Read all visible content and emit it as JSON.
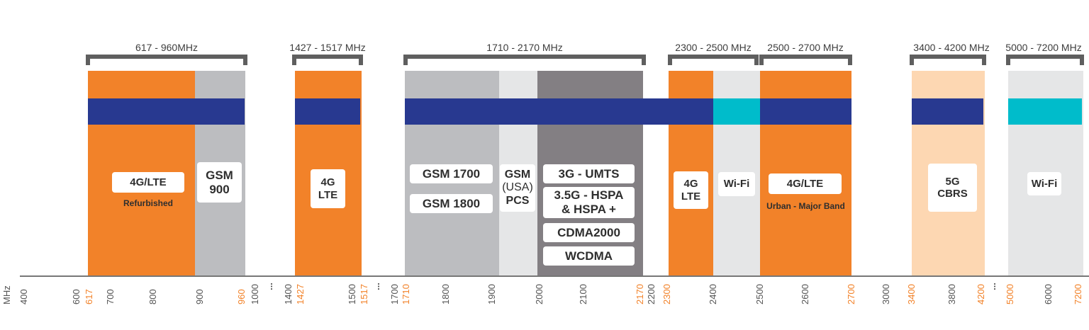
{
  "colors": {
    "orange": "#f28229",
    "light_orange": "#fdd7b2",
    "gray": "#bcbdc0",
    "light_gray": "#e5e6e7",
    "dark_gray": "#837f83",
    "navy": "#283990",
    "cyan": "#00bccb",
    "bracket": "#5f5f5f"
  },
  "axis": {
    "unit": "MHz",
    "ticks": [
      {
        "label": "400",
        "color": "gray"
      },
      {
        "label": "600",
        "color": "gray"
      },
      {
        "label": "617",
        "color": "orange"
      },
      {
        "label": "700",
        "color": "gray"
      },
      {
        "label": "800",
        "color": "gray"
      },
      {
        "label": "900",
        "color": "gray"
      },
      {
        "label": "960",
        "color": "orange"
      },
      {
        "label": "1000",
        "color": "gray"
      },
      {
        "label": "1400",
        "color": "gray"
      },
      {
        "label": "1427",
        "color": "orange"
      },
      {
        "label": "1500",
        "color": "gray"
      },
      {
        "label": "1517",
        "color": "orange"
      },
      {
        "label": "1700",
        "color": "gray"
      },
      {
        "label": "1710",
        "color": "orange"
      },
      {
        "label": "1800",
        "color": "gray"
      },
      {
        "label": "1900",
        "color": "gray"
      },
      {
        "label": "2000",
        "color": "gray"
      },
      {
        "label": "2100",
        "color": "gray"
      },
      {
        "label": "2170",
        "color": "orange"
      },
      {
        "label": "2200",
        "color": "gray"
      },
      {
        "label": "2300",
        "color": "orange"
      },
      {
        "label": "2400",
        "color": "gray"
      },
      {
        "label": "2500",
        "color": "gray"
      },
      {
        "label": "2600",
        "color": "gray"
      },
      {
        "label": "2700",
        "color": "orange"
      },
      {
        "label": "3000",
        "color": "gray"
      },
      {
        "label": "3400",
        "color": "orange"
      },
      {
        "label": "3800",
        "color": "gray"
      },
      {
        "label": "4200",
        "color": "orange"
      },
      {
        "label": "5000",
        "color": "orange"
      },
      {
        "label": "6000",
        "color": "gray"
      },
      {
        "label": "7200",
        "color": "orange"
      }
    ],
    "gap_marker": "..."
  },
  "ranges": [
    {
      "label": "617 - 960MHz"
    },
    {
      "label": "1427 - 1517 MHz"
    },
    {
      "label": "1710 - 2170 MHz"
    },
    {
      "label": "2300 - 2500 MHz"
    },
    {
      "label": "2500 - 2700 MHz"
    },
    {
      "label": "3400 - 4200 MHz"
    },
    {
      "label": "5000 - 7200 MHz"
    }
  ],
  "labels": [
    {
      "id": "lte-refurbished",
      "lines": [
        "4G/LTE"
      ],
      "sub": "Refurbished"
    },
    {
      "id": "gsm900",
      "lines": [
        "GSM",
        "900"
      ]
    },
    {
      "id": "lte-1427",
      "lines": [
        "4G",
        "LTE"
      ]
    },
    {
      "id": "gsm1700",
      "lines": [
        "GSM 1700"
      ]
    },
    {
      "id": "gsm1800",
      "lines": [
        "GSM 1800"
      ]
    },
    {
      "id": "gsm-usa-pcs",
      "lines": [
        "GSM",
        "(USA)",
        "PCS"
      ]
    },
    {
      "id": "umts",
      "lines": [
        "3G - UMTS"
      ]
    },
    {
      "id": "hspa",
      "lines": [
        "3.5G - HSPA",
        "& HSPA +"
      ]
    },
    {
      "id": "cdma2000",
      "lines": [
        "CDMA2000"
      ]
    },
    {
      "id": "wcdma",
      "lines": [
        "WCDMA"
      ]
    },
    {
      "id": "lte-2300",
      "lines": [
        "4G",
        "LTE"
      ]
    },
    {
      "id": "wifi-2400",
      "lines": [
        "Wi-Fi"
      ]
    },
    {
      "id": "lte-urban",
      "lines": [
        "4G/LTE"
      ],
      "sub": "Urban - Major Band"
    },
    {
      "id": "cbrs",
      "lines": [
        "5G",
        "CBRS"
      ]
    },
    {
      "id": "wifi-5000",
      "lines": [
        "Wi-Fi"
      ]
    }
  ]
}
